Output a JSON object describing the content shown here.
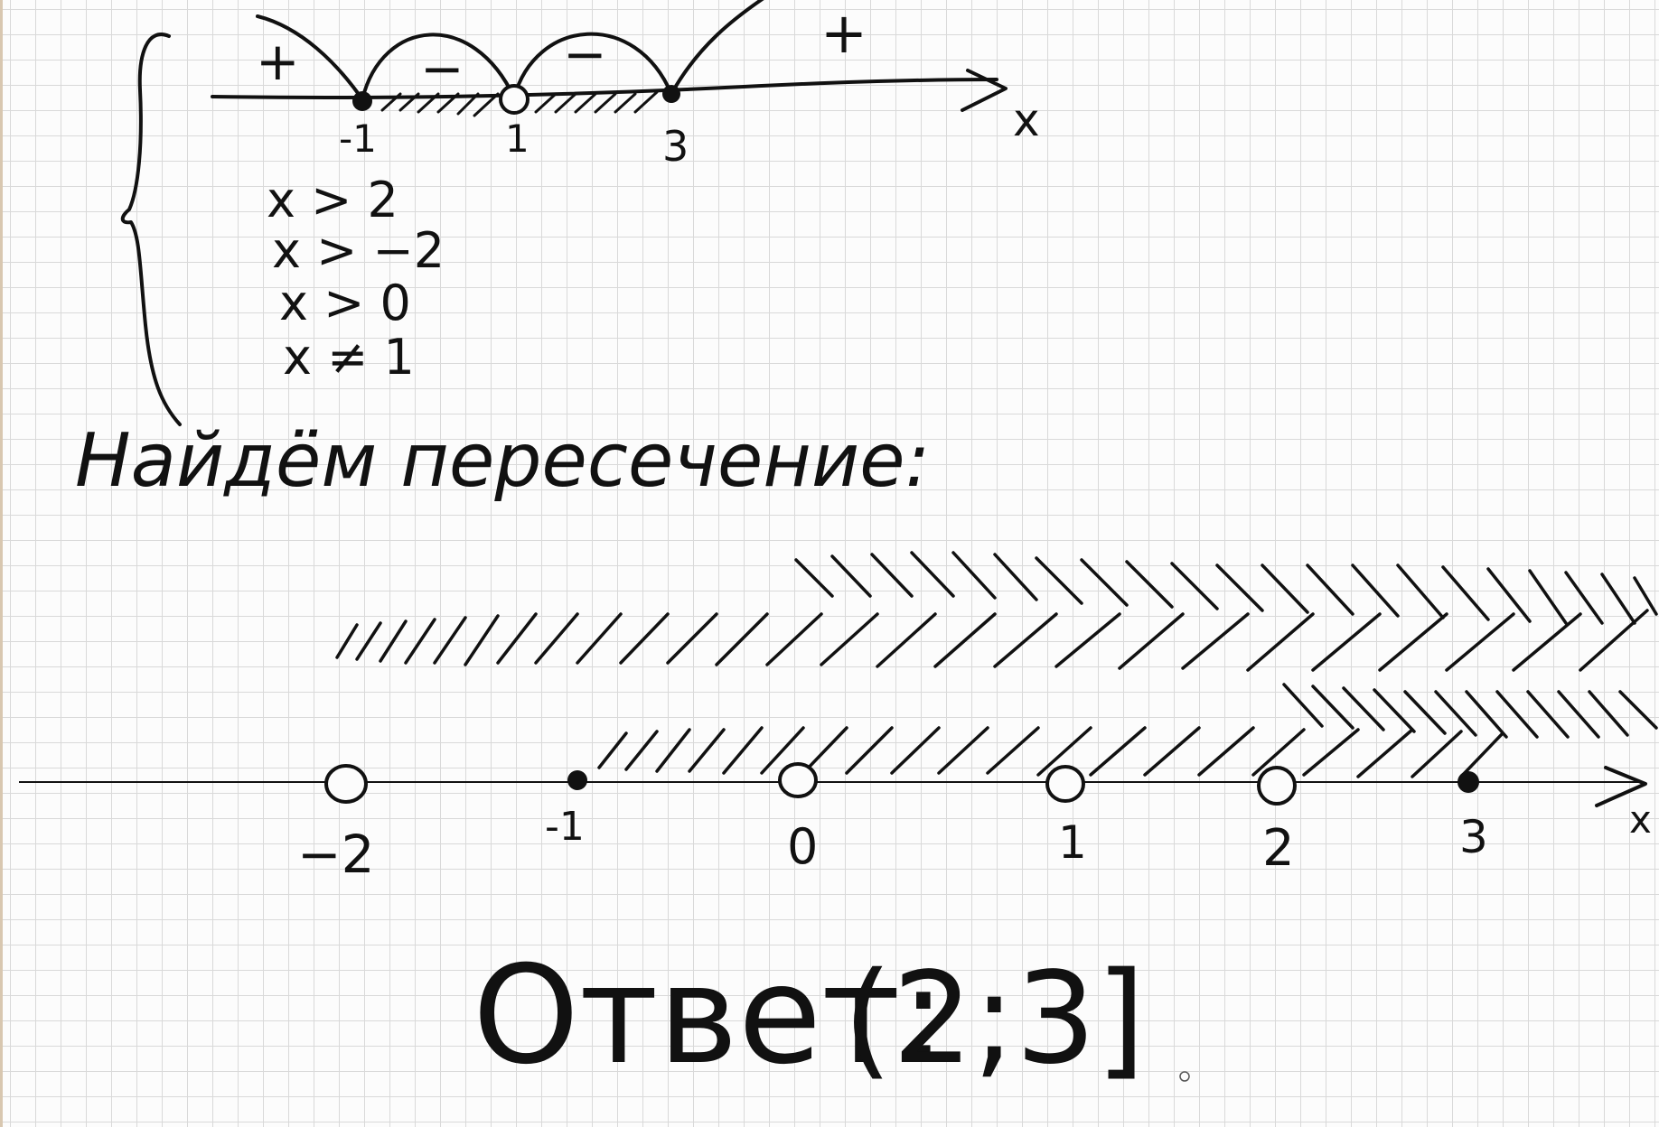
{
  "top_sign_chart": {
    "points": [
      "-1",
      "1",
      "3"
    ],
    "signs": [
      "+",
      "−",
      "−",
      "+"
    ],
    "axis_label": "x"
  },
  "system": {
    "conditions": [
      "x > 2",
      "x > −2",
      "x > 0",
      "x ≠ 1"
    ]
  },
  "heading": "Найдём пересечение:",
  "number_line": {
    "points": [
      "−2",
      "-1",
      "0",
      "1",
      "2",
      "3"
    ],
    "axis_label": "x"
  },
  "answer": {
    "label": "Ответ:",
    "value": "(2;3]"
  },
  "colors": {
    "ink": "#111111",
    "grid": "#d9d9d9",
    "paper": "#fcfcfc"
  }
}
